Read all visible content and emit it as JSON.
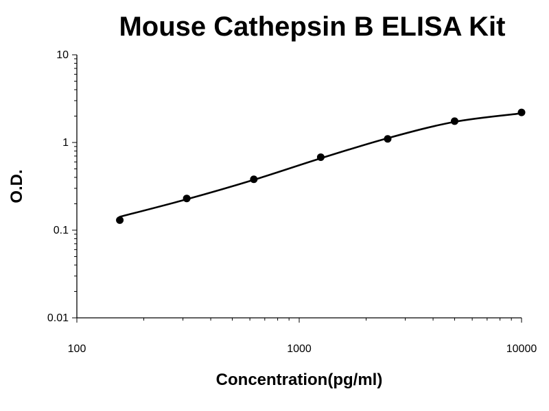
{
  "chart_data": {
    "type": "scatter",
    "title": "Mouse Cathepsin B ELISA Kit",
    "xlabel": "Concentration(pg/ml)",
    "ylabel": "O.D.",
    "x_scale": "log",
    "y_scale": "log",
    "xlim": [
      100,
      10000
    ],
    "ylim": [
      0.01,
      10
    ],
    "x_ticks": [
      "100",
      "1000",
      "10000"
    ],
    "y_ticks": [
      "0.01",
      "0.1",
      "1",
      "10"
    ],
    "grid": false,
    "series": [
      {
        "points": [
          {
            "x": 156,
            "y": 0.13
          },
          {
            "x": 312,
            "y": 0.23
          },
          {
            "x": 625,
            "y": 0.38
          },
          {
            "x": 1250,
            "y": 0.68
          },
          {
            "x": 2500,
            "y": 1.1
          },
          {
            "x": 5000,
            "y": 1.75
          },
          {
            "x": 10000,
            "y": 2.2
          }
        ],
        "fit_curve": [
          {
            "x": 156,
            "y": 0.142
          },
          {
            "x": 312,
            "y": 0.225
          },
          {
            "x": 625,
            "y": 0.375
          },
          {
            "x": 1250,
            "y": 0.66
          },
          {
            "x": 2500,
            "y": 1.12
          },
          {
            "x": 5000,
            "y": 1.72
          },
          {
            "x": 10000,
            "y": 2.15
          }
        ]
      }
    ],
    "colors": {
      "axis": "#000000",
      "marker": "#000000",
      "line": "#000000"
    }
  }
}
